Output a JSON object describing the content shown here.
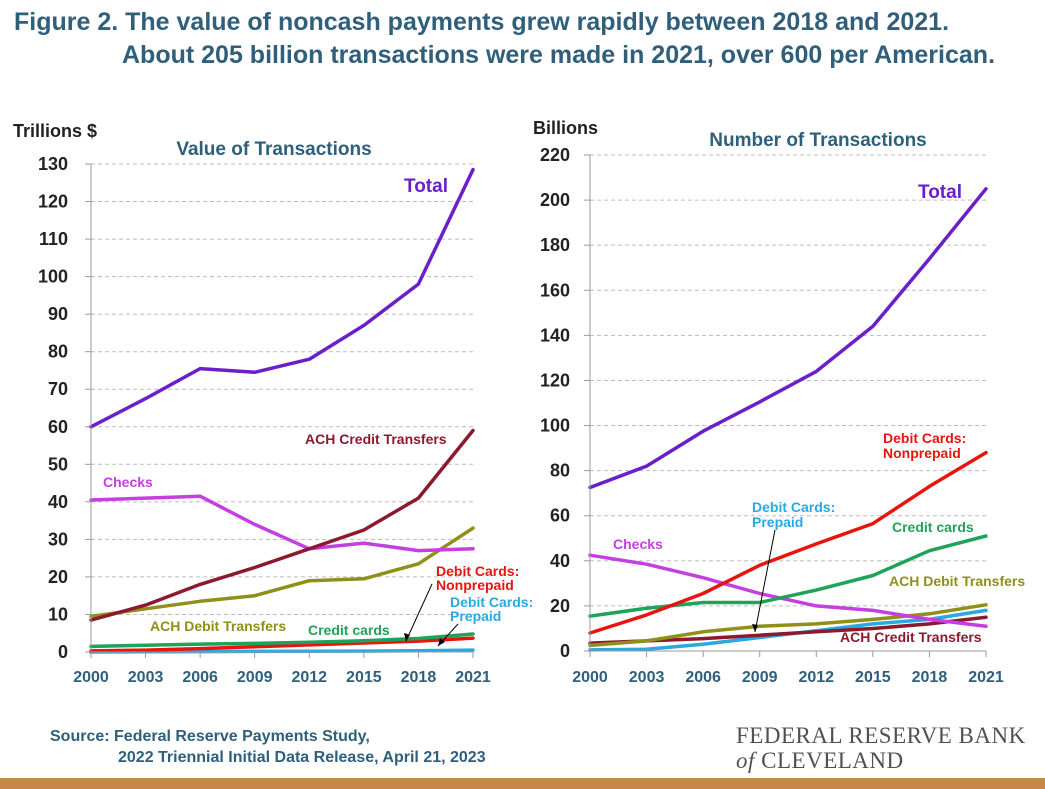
{
  "title": {
    "line1": "Figure 2. The value of noncash payments grew rapidly between 2018 and 2021.",
    "line2": "About 205 billion transactions were made in 2021, over 600 per American."
  },
  "source": {
    "line1": "Source: Federal Reserve Payments Study,",
    "line2": "2022 Triennial Initial Data Release, April 21, 2023"
  },
  "bank": {
    "line1": "FEDERAL RESERVE BANK",
    "of": "of",
    "line2": "CLEVELAND"
  },
  "colors": {
    "total": "#6a1fc8",
    "ach_credit": "#8b1a2e",
    "checks": "#c43ee0",
    "ach_debit": "#8f8f1a",
    "credit_cards": "#1fa35a",
    "debit_nonprepaid": "#e8140e",
    "debit_prepaid": "#2aa8e0",
    "axis_title": "#2f5f7a",
    "grid": "#bcbcbc"
  },
  "chart_data": [
    {
      "type": "line",
      "title": "Value of Transactions",
      "ylabel": "Trillions $",
      "ylim": [
        0,
        130
      ],
      "yticks": [
        0,
        10,
        20,
        30,
        40,
        50,
        60,
        70,
        80,
        90,
        100,
        110,
        120,
        130
      ],
      "x": [
        2000,
        2003,
        2006,
        2009,
        2012,
        2015,
        2018,
        2021
      ],
      "xlabels": [
        "2000",
        "2003",
        "2006",
        "2009",
        "2012",
        "2015",
        "2018",
        "2021"
      ],
      "series": [
        {
          "key": "total",
          "name": "Total",
          "values": [
            60,
            67.5,
            75.5,
            74.5,
            78,
            87,
            98,
            128.5
          ]
        },
        {
          "key": "ach_credit",
          "name": "ACH Credit Transfers",
          "values": [
            8.5,
            12.5,
            18,
            22.5,
            27.5,
            32.5,
            41,
            59
          ]
        },
        {
          "key": "checks",
          "name": "Checks",
          "values": [
            40.5,
            41,
            41.5,
            34,
            27.5,
            29,
            27,
            27.5
          ]
        },
        {
          "key": "ach_debit",
          "name": "ACH Debit Transfers",
          "values": [
            9.5,
            11.5,
            13.5,
            15,
            19,
            19.5,
            23.5,
            33
          ]
        },
        {
          "key": "credit_cards",
          "name": "Credit cards",
          "values": [
            1.5,
            1.8,
            2.1,
            2.3,
            2.6,
            3,
            3.6,
            4.8
          ]
        },
        {
          "key": "debit_nonprepaid",
          "name": "Debit Cards: Nonprepaid",
          "values": [
            0.3,
            0.5,
            0.9,
            1.4,
            1.9,
            2.4,
            2.9,
            3.7
          ]
        },
        {
          "key": "debit_prepaid",
          "name": "Debit Cards: Prepaid",
          "values": [
            0,
            0.05,
            0.1,
            0.15,
            0.2,
            0.25,
            0.35,
            0.5
          ]
        }
      ]
    },
    {
      "type": "line",
      "title": "Number of Transactions",
      "ylabel": "Billions",
      "ylim": [
        0,
        220
      ],
      "yticks": [
        0,
        20,
        40,
        60,
        80,
        100,
        120,
        140,
        160,
        180,
        200,
        220
      ],
      "x": [
        2000,
        2003,
        2006,
        2009,
        2012,
        2015,
        2018,
        2021
      ],
      "xlabels": [
        "2000",
        "2003",
        "2006",
        "2009",
        "2012",
        "2015",
        "2018",
        "2021"
      ],
      "series": [
        {
          "key": "total",
          "name": "Total",
          "values": [
            72.5,
            82,
            97.5,
            110.5,
            124,
            144,
            174,
            205
          ]
        },
        {
          "key": "debit_nonprepaid",
          "name": "Debit Cards: Nonprepaid",
          "values": [
            8,
            16,
            25.5,
            38,
            47.5,
            56.5,
            73,
            88
          ]
        },
        {
          "key": "credit_cards",
          "name": "Credit cards",
          "values": [
            15.5,
            19,
            21.5,
            21.5,
            27,
            33.5,
            44.5,
            51
          ]
        },
        {
          "key": "checks",
          "name": "Checks",
          "values": [
            42.5,
            38.5,
            32.5,
            25.5,
            20,
            18,
            14,
            11
          ]
        },
        {
          "key": "ach_debit",
          "name": "ACH Debit Transfers",
          "values": [
            2.5,
            4.5,
            8.5,
            11,
            12,
            14,
            16.5,
            20.5
          ]
        },
        {
          "key": "ach_credit",
          "name": "ACH Credit Transfers",
          "values": [
            3.5,
            4.5,
            5.5,
            7,
            8.5,
            10,
            12,
            15
          ]
        },
        {
          "key": "debit_prepaid",
          "name": "Debit Cards: Prepaid",
          "values": [
            0.5,
            0.8,
            3,
            6,
            9,
            12,
            14,
            18
          ]
        }
      ]
    }
  ],
  "labels": {
    "left": {
      "total": "Total",
      "ach_credit": "ACH Credit Transfers",
      "checks": "Checks",
      "ach_debit": "ACH Debit Transfers",
      "credit_cards": "Credit cards",
      "debit_nonprepaid_1": "Debit Cards:",
      "debit_nonprepaid_2": "Nonprepaid",
      "debit_prepaid_1": "Debit Cards:",
      "debit_prepaid_2": "Prepaid"
    },
    "right": {
      "total": "Total",
      "debit_nonprepaid_1": "Debit Cards:",
      "debit_nonprepaid_2": "Nonprepaid",
      "credit_cards": "Credit cards",
      "checks": "Checks",
      "debit_prepaid_1": "Debit Cards:",
      "debit_prepaid_2": "Prepaid",
      "ach_debit": "ACH Debit Transfers",
      "ach_credit": "ACH Credit Transfers"
    }
  }
}
